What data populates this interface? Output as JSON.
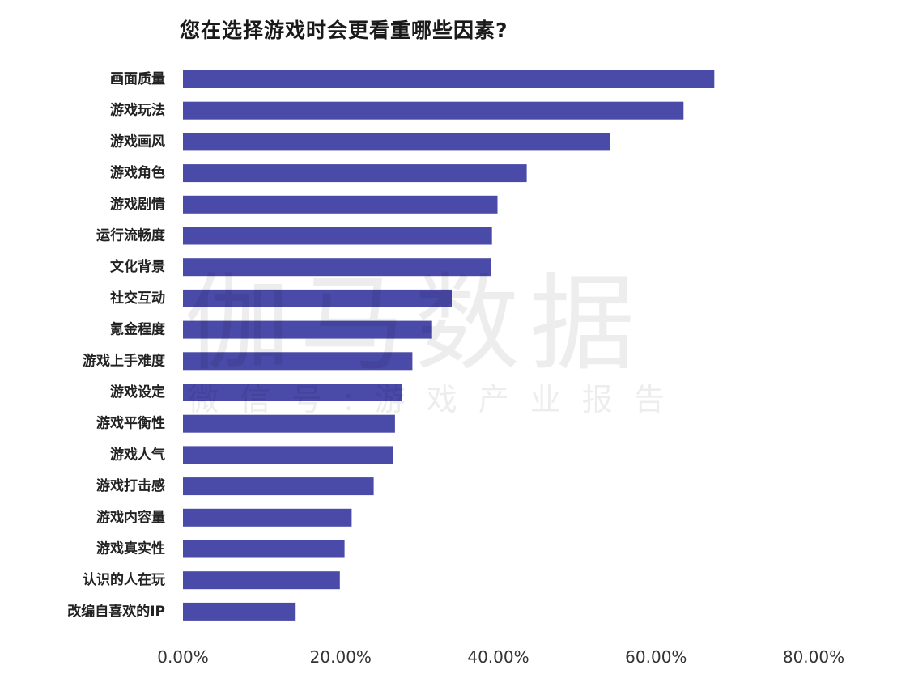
{
  "chart_data": {
    "type": "bar",
    "orientation": "horizontal",
    "title": "您在选择游戏时会更看重哪些因素?",
    "categories": [
      "画面质量",
      "游戏玩法",
      "游戏画风",
      "游戏角色",
      "游戏剧情",
      "运行流畅度",
      "文化背景",
      "社交互动",
      "氪金程度",
      "游戏上手难度",
      "游戏设定",
      "游戏平衡性",
      "游戏人气",
      "游戏打击感",
      "游戏内容量",
      "游戏真实性",
      "认识的人在玩",
      "改编自喜欢的IP"
    ],
    "values": [
      67.4,
      63.5,
      54.2,
      43.6,
      39.9,
      39.2,
      39.1,
      34.1,
      31.6,
      29.1,
      27.8,
      26.9,
      26.7,
      24.2,
      21.4,
      20.5,
      19.9,
      14.3
    ],
    "xlim": [
      0,
      80
    ],
    "xticks": [
      "0.00%",
      "20.00%",
      "40.00%",
      "60.00%",
      "80.00%"
    ],
    "xlabel": "",
    "ylabel": "",
    "bar_color": "#4a4aa8",
    "grid": false,
    "legend": "none"
  },
  "watermark": {
    "main": "伽马数据",
    "sub": "微信号:游戏产业报告"
  }
}
